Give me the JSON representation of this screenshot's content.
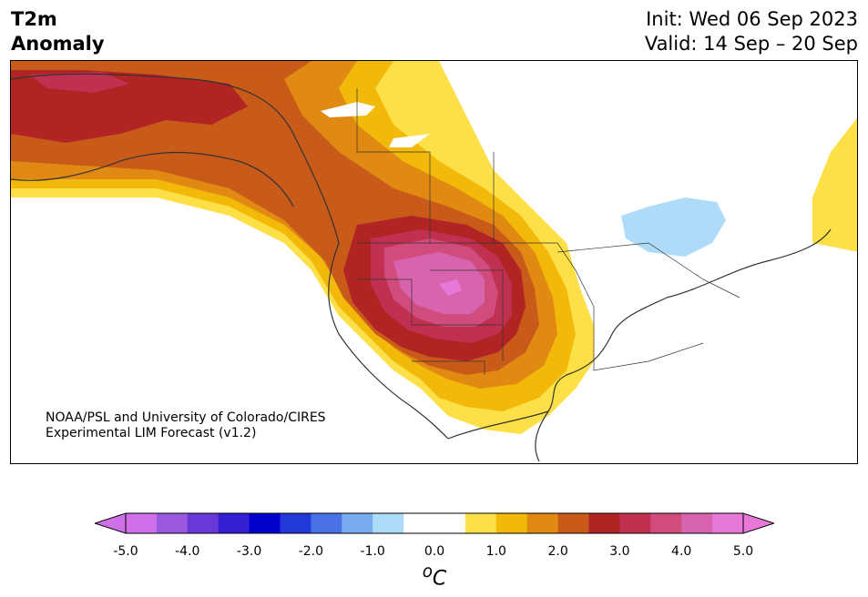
{
  "header": {
    "variable": "T2m",
    "field": "Anomaly",
    "init": "Init: Wed 06 Sep 2023",
    "valid": "Valid: 14 Sep – 20 Sep"
  },
  "credit": {
    "line1": "NOAA/PSL and University of Colorado/CIRES",
    "line2": "Experimental LIM Forecast (v1.2)"
  },
  "colorbar": {
    "unit_sup": "o",
    "unit": "C",
    "ticks": [
      "-5.0",
      "-4.0",
      "-3.0",
      "-2.0",
      "-1.0",
      "0.0",
      "1.0",
      "2.0",
      "3.0",
      "4.0",
      "5.0"
    ],
    "colors": [
      "#d070e8",
      "#9a57e0",
      "#6a38d8",
      "#3420d0",
      "#0000cc",
      "#2338d8",
      "#4a72e8",
      "#78aef0",
      "#aedcf8",
      "#ffffff",
      "#ffffff",
      "#fde047",
      "#f2b80a",
      "#e08a14",
      "#c85a1a",
      "#b02424",
      "#c03050",
      "#d04c7c",
      "#d864b0",
      "#e878d8"
    ]
  },
  "colors": {
    "land": "#ffffff",
    "coast": "#333333",
    "anom_0_5": "#fde047",
    "anom_1_0": "#f2b80a",
    "anom_1_5": "#e08a14",
    "anom_2_0": "#c85a1a",
    "anom_2_5": "#b02424",
    "anom_3_0": "#c03050",
    "anom_3_5": "#d04c7c",
    "anom_4_0": "#d864b0",
    "anom_4_5": "#e878d8",
    "cool_0_5": "#aedcf8"
  }
}
